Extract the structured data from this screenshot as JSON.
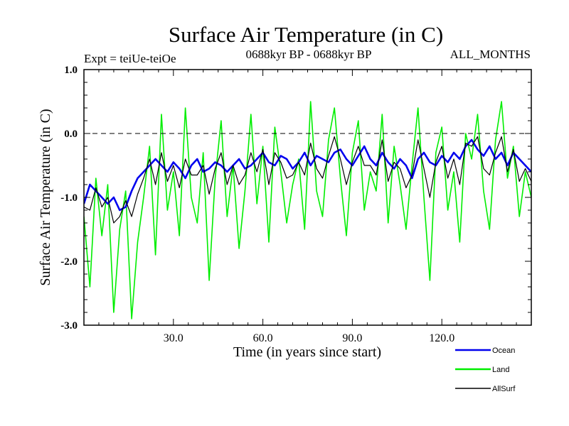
{
  "chart_data": {
    "type": "line",
    "title": "Surface Air Temperature (in C)",
    "subtitle_left": "Expt = teiUe-teiOe",
    "subtitle_center": "0688kyr BP - 0688kyr BP",
    "subtitle_right": "ALL_MONTHS",
    "xlabel": "Time (in years since start)",
    "ylabel": "Surface Air Temperature (in C)",
    "xlim": [
      0,
      150
    ],
    "ylim": [
      -3.0,
      1.0
    ],
    "x_ticks": [
      {
        "value": 30,
        "label": "30.0"
      },
      {
        "value": 60,
        "label": "60.0"
      },
      {
        "value": 90,
        "label": "90.0"
      },
      {
        "value": 120,
        "label": "120.0"
      }
    ],
    "y_ticks": [
      {
        "value": 1.0,
        "label": "1.0"
      },
      {
        "value": 0.0,
        "label": "0.0"
      },
      {
        "value": -1.0,
        "label": "-1.0"
      },
      {
        "value": -2.0,
        "label": "-2.0"
      },
      {
        "value": -3.0,
        "label": "-3.0"
      }
    ],
    "reference_line": {
      "y": 0.0,
      "style": "dashed"
    },
    "series": [
      {
        "name": "Land",
        "color": "#00ee00",
        "x": [
          0,
          2,
          4,
          6,
          8,
          10,
          12,
          14,
          16,
          18,
          20,
          22,
          24,
          26,
          28,
          30,
          32,
          34,
          36,
          38,
          40,
          42,
          44,
          46,
          48,
          50,
          52,
          54,
          56,
          58,
          60,
          62,
          64,
          66,
          68,
          70,
          72,
          74,
          76,
          78,
          80,
          82,
          84,
          86,
          88,
          90,
          92,
          94,
          96,
          98,
          100,
          102,
          104,
          106,
          108,
          110,
          112,
          114,
          116,
          118,
          120,
          122,
          124,
          126,
          128,
          130,
          132,
          134,
          136,
          138,
          140,
          142,
          144,
          146,
          148,
          150
        ],
        "values": [
          -1.3,
          -2.4,
          -0.7,
          -1.6,
          -0.8,
          -2.8,
          -1.5,
          -0.9,
          -2.9,
          -1.7,
          -1.0,
          -0.2,
          -1.9,
          0.3,
          -1.2,
          -0.6,
          -1.6,
          0.4,
          -1.0,
          -1.4,
          -0.3,
          -2.3,
          -0.7,
          0.2,
          -1.3,
          -0.5,
          -1.8,
          -0.9,
          0.3,
          -1.1,
          -0.2,
          -1.7,
          0.1,
          -0.6,
          -1.4,
          -0.8,
          -0.4,
          -1.5,
          0.5,
          -0.9,
          -1.3,
          -0.1,
          0.4,
          -0.7,
          -1.6,
          -0.3,
          0.2,
          -1.2,
          -0.6,
          -0.9,
          0.3,
          -1.4,
          -0.2,
          -0.8,
          -1.5,
          -0.5,
          0.4,
          -1.0,
          -2.3,
          -0.3,
          0.1,
          -1.2,
          -0.6,
          -1.7,
          0.0,
          -0.4,
          0.3,
          -0.9,
          -1.5,
          -0.1,
          0.5,
          -0.7,
          -0.2,
          -1.3,
          -0.6,
          -1.0
        ]
      },
      {
        "name": "Ocean",
        "color": "#0000ee",
        "x": [
          0,
          2,
          4,
          6,
          8,
          10,
          12,
          14,
          16,
          18,
          20,
          22,
          24,
          26,
          28,
          30,
          32,
          34,
          36,
          38,
          40,
          42,
          44,
          46,
          48,
          50,
          52,
          54,
          56,
          58,
          60,
          62,
          64,
          66,
          68,
          70,
          72,
          74,
          76,
          78,
          80,
          82,
          84,
          86,
          88,
          90,
          92,
          94,
          96,
          98,
          100,
          102,
          104,
          106,
          108,
          110,
          112,
          114,
          116,
          118,
          120,
          122,
          124,
          126,
          128,
          130,
          132,
          134,
          136,
          138,
          140,
          142,
          144,
          146,
          148,
          150
        ],
        "values": [
          -1.1,
          -0.8,
          -0.9,
          -1.0,
          -1.1,
          -1.0,
          -1.2,
          -1.15,
          -0.9,
          -0.7,
          -0.6,
          -0.5,
          -0.4,
          -0.5,
          -0.6,
          -0.45,
          -0.55,
          -0.7,
          -0.5,
          -0.4,
          -0.6,
          -0.55,
          -0.45,
          -0.5,
          -0.6,
          -0.5,
          -0.4,
          -0.55,
          -0.5,
          -0.4,
          -0.3,
          -0.45,
          -0.5,
          -0.35,
          -0.4,
          -0.55,
          -0.45,
          -0.3,
          -0.5,
          -0.35,
          -0.4,
          -0.45,
          -0.3,
          -0.25,
          -0.4,
          -0.5,
          -0.35,
          -0.2,
          -0.4,
          -0.5,
          -0.3,
          -0.45,
          -0.55,
          -0.4,
          -0.5,
          -0.7,
          -0.4,
          -0.3,
          -0.45,
          -0.5,
          -0.35,
          -0.45,
          -0.3,
          -0.4,
          -0.2,
          -0.1,
          -0.25,
          -0.35,
          -0.2,
          -0.4,
          -0.3,
          -0.5,
          -0.3,
          -0.4,
          -0.5,
          -0.6
        ]
      },
      {
        "name": "AllSurf",
        "color": "#000000",
        "x": [
          0,
          2,
          4,
          6,
          8,
          10,
          12,
          14,
          16,
          18,
          20,
          22,
          24,
          26,
          28,
          30,
          32,
          34,
          36,
          38,
          40,
          42,
          44,
          46,
          48,
          50,
          52,
          54,
          56,
          58,
          60,
          62,
          64,
          66,
          68,
          70,
          72,
          74,
          76,
          78,
          80,
          82,
          84,
          86,
          88,
          90,
          92,
          94,
          96,
          98,
          100,
          102,
          104,
          106,
          108,
          110,
          112,
          114,
          116,
          118,
          120,
          122,
          124,
          126,
          128,
          130,
          132,
          134,
          136,
          138,
          140,
          142,
          144,
          146,
          148,
          150
        ],
        "values": [
          -1.15,
          -1.2,
          -0.85,
          -1.15,
          -1.0,
          -1.4,
          -1.3,
          -1.05,
          -1.3,
          -0.95,
          -0.7,
          -0.4,
          -0.8,
          -0.3,
          -0.75,
          -0.5,
          -0.85,
          -0.4,
          -0.65,
          -0.65,
          -0.5,
          -0.95,
          -0.55,
          -0.3,
          -0.8,
          -0.5,
          -0.8,
          -0.65,
          -0.3,
          -0.6,
          -0.25,
          -0.8,
          -0.3,
          -0.45,
          -0.7,
          -0.65,
          -0.45,
          -0.65,
          -0.15,
          -0.55,
          -0.7,
          -0.35,
          -0.05,
          -0.4,
          -0.8,
          -0.45,
          -0.2,
          -0.5,
          -0.5,
          -0.65,
          -0.1,
          -0.75,
          -0.45,
          -0.55,
          -0.85,
          -0.65,
          -0.1,
          -0.55,
          -1.0,
          -0.45,
          -0.2,
          -0.7,
          -0.4,
          -0.8,
          -0.15,
          -0.2,
          -0.05,
          -0.55,
          -0.65,
          -0.3,
          -0.05,
          -0.6,
          -0.25,
          -0.75,
          -0.55,
          -0.75
        ]
      }
    ],
    "legend": [
      {
        "name": "Ocean",
        "color": "#0000ee"
      },
      {
        "name": "Land",
        "color": "#00ee00"
      },
      {
        "name": "AllSurf",
        "color": "#000000"
      }
    ],
    "legend_position": "bottom-right"
  }
}
